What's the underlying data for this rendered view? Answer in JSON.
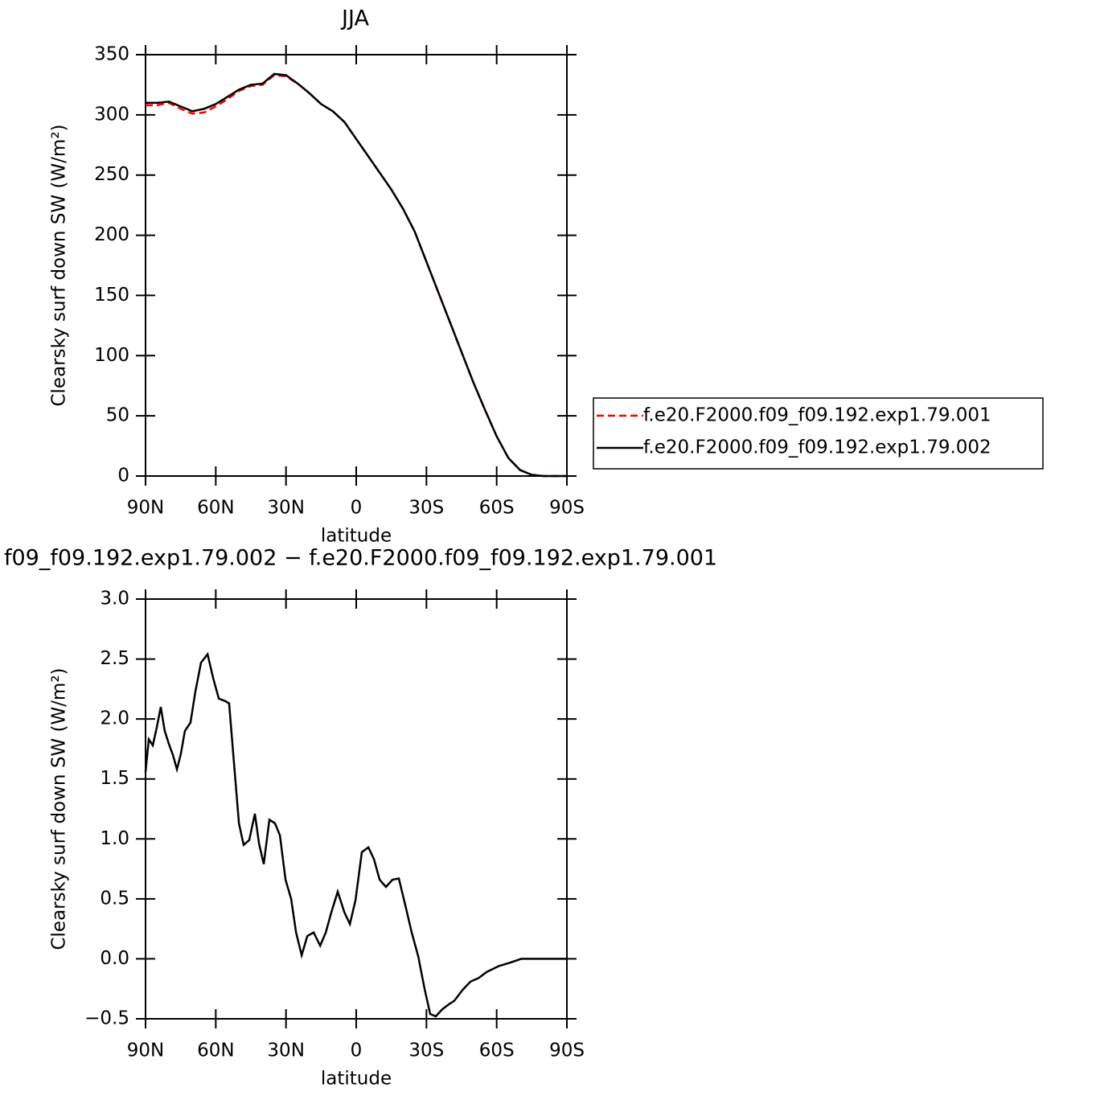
{
  "chart_data": [
    {
      "type": "line",
      "title": "JJA",
      "xlabel": "latitude",
      "ylabel": "Clearsky surf down SW (W/m²)",
      "x": [
        90,
        85,
        80,
        75,
        70,
        65,
        60,
        55,
        50,
        45,
        40,
        35,
        30,
        25,
        20,
        15,
        10,
        5,
        0,
        -5,
        -10,
        -15,
        -20,
        -25,
        -30,
        -35,
        -40,
        -45,
        -50,
        -55,
        -60,
        -65,
        -70,
        -75,
        -80,
        -85,
        -90
      ],
      "series": [
        {
          "name": "f.e20.F2000.f09_f09.192.exp1.79.001",
          "color": "#ff0000",
          "line_style": "dashed",
          "values": [
            308,
            308,
            310,
            305,
            301,
            302,
            307,
            313,
            320,
            324,
            325,
            333,
            332,
            326,
            318,
            309,
            303,
            294,
            280,
            266,
            252,
            238,
            222,
            203,
            178,
            153,
            128,
            103,
            78,
            55,
            33,
            15,
            5,
            1,
            0,
            0,
            0
          ]
        },
        {
          "name": "f.e20.F2000.f09_f09.192.exp1.79.002",
          "color": "#000000",
          "line_style": "solid",
          "values": [
            310,
            310,
            311,
            307,
            303,
            305,
            309,
            315,
            321,
            325,
            326,
            334,
            333,
            326,
            318,
            309,
            303,
            294,
            280,
            266,
            252,
            238,
            222,
            203,
            178,
            153,
            128,
            103,
            78,
            55,
            33,
            15,
            5,
            1,
            0,
            0,
            0
          ]
        }
      ],
      "xlim": [
        90,
        -90
      ],
      "xticks": [
        {
          "value": 90,
          "label": "90N"
        },
        {
          "value": 60,
          "label": "60N"
        },
        {
          "value": 30,
          "label": "30N"
        },
        0,
        {
          "value": -30,
          "label": "30S"
        },
        {
          "value": -60,
          "label": "60S"
        },
        {
          "value": -90,
          "label": "90S"
        }
      ],
      "ylim": [
        0,
        350
      ],
      "yticks": [
        0,
        50,
        100,
        150,
        200,
        250,
        300,
        350
      ],
      "legend": "right"
    },
    {
      "type": "line",
      "title": "f09_f09.192.exp1.79.002 − f.e20.F2000.f09_f09.192.exp1.79.001",
      "xlabel": "latitude",
      "ylabel": "Clearsky surf down SW (W/m²)",
      "x": [
        90,
        88.6,
        86.9,
        85.2,
        83.5,
        81.8,
        80,
        78.3,
        76.6,
        74.9,
        73.2,
        70.8,
        68.7,
        66.3,
        63.5,
        61.1,
        58.7,
        56,
        54.3,
        52.5,
        50.1,
        48.1,
        45.7,
        43.3,
        41.5,
        39.5,
        37.1,
        34.7,
        32.6,
        30.2,
        27.8,
        25.7,
        23.3,
        20.9,
        18.2,
        15.4,
        13,
        10.6,
        7.9,
        5.1,
        2.7,
        0.3,
        -2.4,
        -5.2,
        -7.6,
        -10,
        -12.7,
        -15.5,
        -18.2,
        -21.3,
        -23.7,
        -26.5,
        -29.2,
        -31.6,
        -34,
        -36.8,
        -39.5,
        -41.9,
        -45.4,
        -48.8,
        -52.3,
        -55.7,
        -60.9,
        -66,
        -70.5,
        -74.6,
        -90
      ],
      "values": [
        1.56,
        1.83,
        1.78,
        1.93,
        2.1,
        1.9,
        1.79,
        1.7,
        1.58,
        1.71,
        1.9,
        1.97,
        2.23,
        2.47,
        2.54,
        2.34,
        2.17,
        2.15,
        2.13,
        1.7,
        1.13,
        0.95,
        0.99,
        1.21,
        0.96,
        0.79,
        1.16,
        1.13,
        1.03,
        0.66,
        0.5,
        0.22,
        0.03,
        0.19,
        0.22,
        0.11,
        0.22,
        0.39,
        0.56,
        0.39,
        0.29,
        0.49,
        0.89,
        0.93,
        0.83,
        0.66,
        0.6,
        0.66,
        0.67,
        0.42,
        0.22,
        0.02,
        -0.25,
        -0.46,
        -0.48,
        -0.42,
        -0.38,
        -0.35,
        -0.26,
        -0.19,
        -0.16,
        -0.11,
        -0.06,
        -0.03,
        0,
        0,
        0
      ],
      "color": "#000000",
      "xlim": [
        90,
        -90
      ],
      "xticks": [
        {
          "value": 90,
          "label": "90N"
        },
        {
          "value": 60,
          "label": "60N"
        },
        {
          "value": 30,
          "label": "30N"
        },
        0,
        {
          "value": -30,
          "label": "30S"
        },
        {
          "value": -60,
          "label": "60S"
        },
        {
          "value": -90,
          "label": "90S"
        }
      ],
      "ylim": [
        -0.5,
        3
      ],
      "yticks": [
        {
          "value": -0.5,
          "label": "−0.5"
        },
        {
          "value": 0,
          "label": "0.0"
        },
        {
          "value": 0.5,
          "label": "0.5"
        },
        {
          "value": 1,
          "label": "1.0"
        },
        {
          "value": 1.5,
          "label": "1.5"
        },
        {
          "value": 2,
          "label": "2.0"
        },
        {
          "value": 2.5,
          "label": "2.5"
        },
        {
          "value": 3,
          "label": "3.0"
        }
      ]
    }
  ]
}
